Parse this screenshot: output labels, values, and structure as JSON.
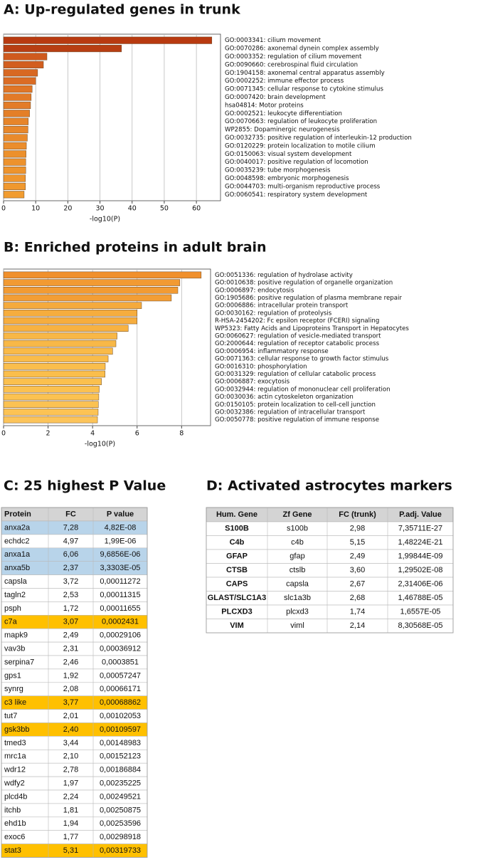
{
  "chart_data": [
    {
      "type": "bar",
      "orientation": "horizontal",
      "title": "A: Up-regulated genes in trunk",
      "x_label": "-log10(P)",
      "categories": [
        "GO:0003341: cilium movement",
        "GO:0070286: axonemal dynein complex assembly",
        "GO:0003352: regulation of cilium movement",
        "GO:0090660: cerebrospinal fluid circulation",
        "GO:1904158: axonemal central apparatus assembly",
        "GO:0002252: immune effector process",
        "GO:0071345: cellular response to cytokine stimulus",
        "GO:0007420: brain development",
        "hsa04814: Motor proteins",
        "GO:0002521: leukocyte differentiation",
        "GO:0070663: regulation of leukocyte proliferation",
        "WP2855: Dopaminergic neurogenesis",
        "GO:0032735: positive regulation of interleukin-12 production",
        "GO:0120229: protein localization to motile cilium",
        "GO:0150063: visual system development",
        "GO:0040017: positive regulation of locomotion",
        "GO:0035239: tube morphogenesis",
        "GO:0048598: embryonic morphogenesis",
        "GO:0044703: multi-organism reproductive process",
        "GO:0060541: respiratory system development"
      ],
      "values": [
        64.8,
        36.7,
        13.5,
        12.4,
        10.6,
        10,
        8.9,
        8.6,
        8.4,
        8.1,
        7.7,
        7.6,
        7.4,
        7.1,
        7,
        6.9,
        6.9,
        6.8,
        6.8,
        6.4
      ],
      "colors": [
        "#b83a10",
        "#b83e12",
        "#cf5a1e",
        "#d25e1f",
        "#d86822",
        "#db6c24",
        "#e07626",
        "#e27a27",
        "#e37c28",
        "#e47f28",
        "#e7852a",
        "#e8872a",
        "#e98a2b",
        "#eb8d2c",
        "#ec902c",
        "#ed922d",
        "#ee942d",
        "#ef962e",
        "#f0982e",
        "#f19c30"
      ],
      "xlim": [
        0,
        67.5
      ],
      "xticks": [
        0,
        10,
        20,
        30,
        40,
        50,
        60
      ],
      "grid": true
    },
    {
      "type": "bar",
      "orientation": "horizontal",
      "title": "B: Enriched proteins in adult brain",
      "x_label": "-log10(P)",
      "categories": [
        "GO:0051336: regulation of hydrolase activity",
        "GO:0010638: positive regulation of organelle organization",
        "GO:0006897: endocytosis",
        "GO:1905686: positive regulation of plasma membrane repair",
        "GO:0006886: intracellular protein transport",
        "GO:0030162: regulation of proteolysis",
        "R-HSA-2454202: Fc epsilon receptor (FCERI) signaling",
        "WP5323: Fatty Acids and Lipoproteins Transport in Hepatocytes",
        "GO:0060627: regulation of vesicle-mediated transport",
        "GO:2000644: regulation of receptor catabolic process",
        "GO:0006954: inflammatory response",
        "GO:0071363: cellular response to growth factor stimulus",
        "GO:0016310: phosphorylation",
        "GO:0031329: regulation of cellular catabolic process",
        "GO:0006887: exocytosis",
        "GO:0032944: regulation of mononuclear cell proliferation",
        "GO:0030036: actin cytoskeleton organization",
        "GO:0150105: protein localization to cell-cell junction",
        "GO:0032386: regulation of intracellular transport",
        "GO:0050778: positive regulation of immune response"
      ],
      "values": [
        8.88,
        7.92,
        7.83,
        7.54,
        6.2,
        6,
        6,
        5.6,
        5.1,
        5.05,
        4.9,
        4.7,
        4.57,
        4.56,
        4.4,
        4.3,
        4.28,
        4.26,
        4.25,
        4.22
      ],
      "colors": [
        "#f0902c",
        "#f29a32",
        "#f29b33",
        "#f39e35",
        "#f5aa3c",
        "#f6ad3e",
        "#f6ad3e",
        "#f7b242",
        "#f8b746",
        "#f8b847",
        "#f9ba48",
        "#f9bc4a",
        "#fabe4c",
        "#fabe4c",
        "#fbc04e",
        "#fbc150",
        "#fbc251",
        "#fbc252",
        "#fcc354",
        "#fcc45a"
      ],
      "xlim": [
        0,
        9.3
      ],
      "xticks": [
        0,
        2,
        4,
        6,
        8
      ],
      "grid": true
    }
  ],
  "tables": [
    {
      "title": "C: 25 highest P Value",
      "header": [
        "Protein",
        "FC",
        "P value"
      ],
      "rows": [
        [
          "anxa2a",
          "7,28",
          "4,82E-08"
        ],
        [
          "echdc2",
          "4,97",
          "1,99E-06"
        ],
        [
          "anxa1a",
          "6,06",
          "9,6856E-06"
        ],
        [
          "anxa5b",
          "2,37",
          "3,3303E-05"
        ],
        [
          "capsla",
          "3,72",
          "0,00011272"
        ],
        [
          "tagln2",
          "2,53",
          "0,00011315"
        ],
        [
          "psph",
          "1,72",
          "0,00011655"
        ],
        [
          "c7a",
          "3,07",
          "0,0002431"
        ],
        [
          "mapk9",
          "2,49",
          "0,00029106"
        ],
        [
          "vav3b",
          "2,31",
          "0,00036912"
        ],
        [
          "serpina7",
          "2,46",
          "0,0003851"
        ],
        [
          "gps1",
          "1,92",
          "0,00057247"
        ],
        [
          "synrg",
          "2,08",
          "0,00066171"
        ],
        [
          "c3 like",
          "3,77",
          "0,00068862"
        ],
        [
          "tut7",
          "2,01",
          "0,00102053"
        ],
        [
          "gsk3bb",
          "2,40",
          "0,00109597"
        ],
        [
          "tmed3",
          "3,44",
          "0,00148983"
        ],
        [
          "mrc1a",
          "2,10",
          "0,00152123"
        ],
        [
          "wdr12",
          "2,78",
          "0,00186884"
        ],
        [
          "wdfy2",
          "1,97",
          "0,00235225"
        ],
        [
          "plcd4b",
          "2,24",
          "0,00249521"
        ],
        [
          "itchb",
          "1,81",
          "0,00250875"
        ],
        [
          "ehd1b",
          "1,94",
          "0,00253596"
        ],
        [
          "exoc6",
          "1,77",
          "0,00298918"
        ],
        [
          "stat3",
          "5,31",
          "0,00319733"
        ]
      ],
      "row_colors": [
        "#b8d4ea",
        "#ffffff",
        "#b8d4ea",
        "#b8d4ea",
        "#ffffff",
        "#ffffff",
        "#ffffff",
        "#ffc000",
        "#ffffff",
        "#ffffff",
        "#ffffff",
        "#ffffff",
        "#ffffff",
        "#ffc000",
        "#ffffff",
        "#ffc000",
        "#ffffff",
        "#ffffff",
        "#ffffff",
        "#ffffff",
        "#ffffff",
        "#ffffff",
        "#ffffff",
        "#ffffff",
        "#ffc000"
      ]
    },
    {
      "title": "D: Activated astrocytes markers",
      "header": [
        "Hum. Gene",
        "Zf Gene",
        "FC (trunk)",
        "P.adj. Value"
      ],
      "rows": [
        [
          "S100B",
          "s100b",
          "2,98",
          "7,35711E-27"
        ],
        [
          "C4b",
          "c4b",
          "5,15",
          "1,48224E-21"
        ],
        [
          "GFAP",
          "gfap",
          "2,49",
          "1,99844E-09"
        ],
        [
          "CTSB",
          "ctslb",
          "3,60",
          "1,29502E-08"
        ],
        [
          "CAPS",
          "capsla",
          "2,67",
          "2,31406E-06"
        ],
        [
          "GLAST/SLC1A3",
          "slc1a3b",
          "2,68",
          "1,46788E-05"
        ],
        [
          "PLCXD3",
          "plcxd3",
          "1,74",
          "1,6557E-05"
        ],
        [
          "VIM",
          "viml",
          "2,14",
          "8,30568E-05"
        ]
      ]
    }
  ]
}
